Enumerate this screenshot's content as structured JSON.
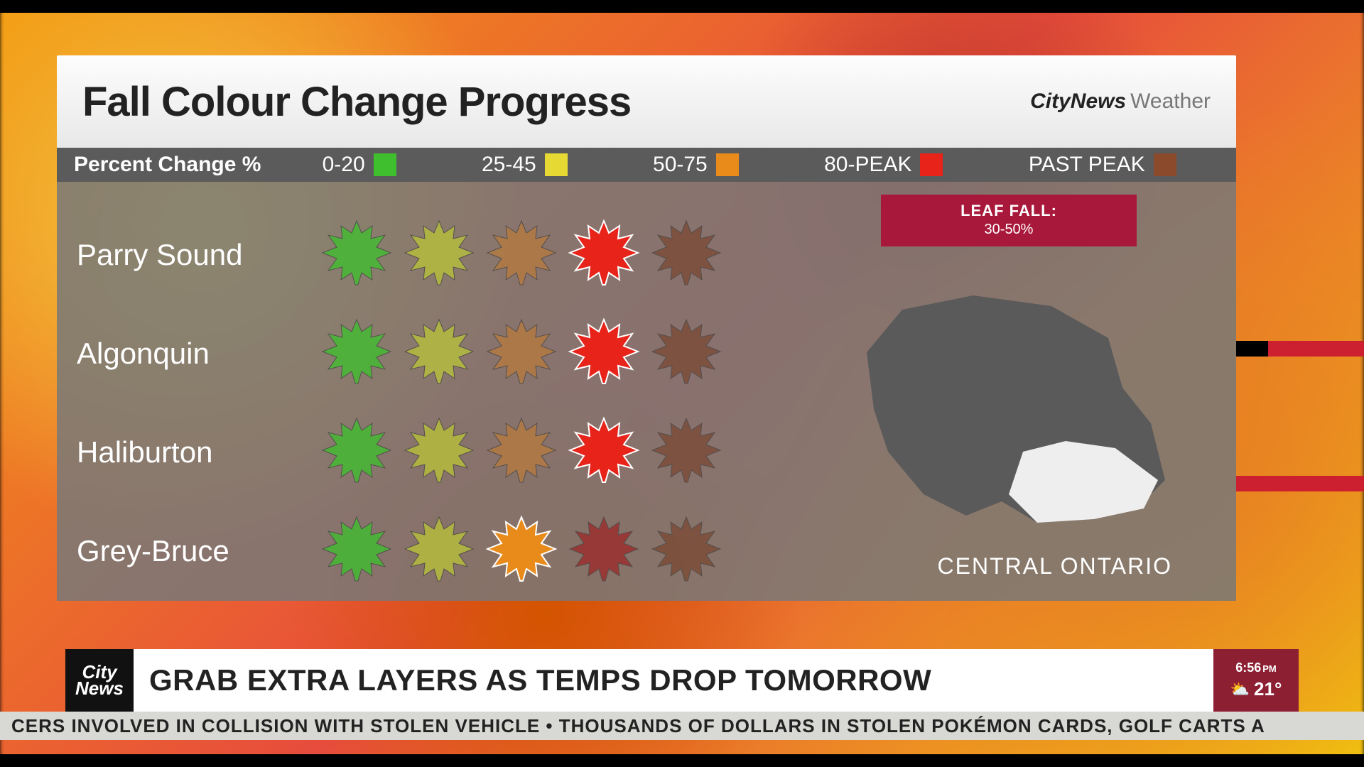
{
  "panel": {
    "title": "Fall Colour Change Progress",
    "brand_bold": "CityNews",
    "brand_light": "Weather"
  },
  "legend": {
    "label": "Percent Change %",
    "items": [
      {
        "range": "0-20",
        "color": "#3fbf2e"
      },
      {
        "range": "25-45",
        "color": "#e6d934"
      },
      {
        "range": "50-75",
        "color": "#e88b1a"
      },
      {
        "range": "80-PEAK",
        "color": "#e8231a"
      },
      {
        "range": "PAST PEAK",
        "color": "#8b4a2b"
      }
    ]
  },
  "leaf_fall": {
    "title": "LEAF FALL:",
    "value": "30-50%",
    "bg_color": "#a8183a"
  },
  "map": {
    "label": "CENTRAL ONTARIO",
    "dark_color": "#5a5a5a",
    "highlight_color": "#eeeeee"
  },
  "rows": [
    {
      "name": "Parry Sound",
      "leaves": [
        "#3fbf2e",
        "#b9c23a",
        "#b77a3e",
        "#e8231a",
        "#7a4a34"
      ],
      "active_index": 3
    },
    {
      "name": "Algonquin",
      "leaves": [
        "#3fbf2e",
        "#b9c23a",
        "#b77a3e",
        "#e8231a",
        "#7a4a34"
      ],
      "active_index": 3
    },
    {
      "name": "Haliburton",
      "leaves": [
        "#3fbf2e",
        "#b9c23a",
        "#b77a3e",
        "#e8231a",
        "#7a4a34"
      ],
      "active_index": 3
    },
    {
      "name": "Grey-Bruce",
      "leaves": [
        "#3fbf2e",
        "#b9c23a",
        "#e88b1a",
        "#9c2a2a",
        "#7a4a34"
      ],
      "active_index": 2
    }
  ],
  "lower_third": {
    "logo_line1": "City",
    "logo_line2": "News",
    "headline": "GRAB EXTRA LAYERS AS TEMPS DROP TOMORROW",
    "time": "6:56",
    "ampm": "PM",
    "temp": "21°",
    "weather_icon": "⛅"
  },
  "ticker": {
    "text": "CERS INVOLVED IN COLLISION WITH STOLEN VEHICLE   •   THOUSANDS OF DOLLARS IN STOLEN POKÉMON CARDS, GOLF CARTS A"
  },
  "style": {
    "panel_body_bg": "rgba(120,120,120,0.85)",
    "legend_bar_bg": "#5b5b5b",
    "row_label_fontsize": 42,
    "title_fontsize": 58
  }
}
